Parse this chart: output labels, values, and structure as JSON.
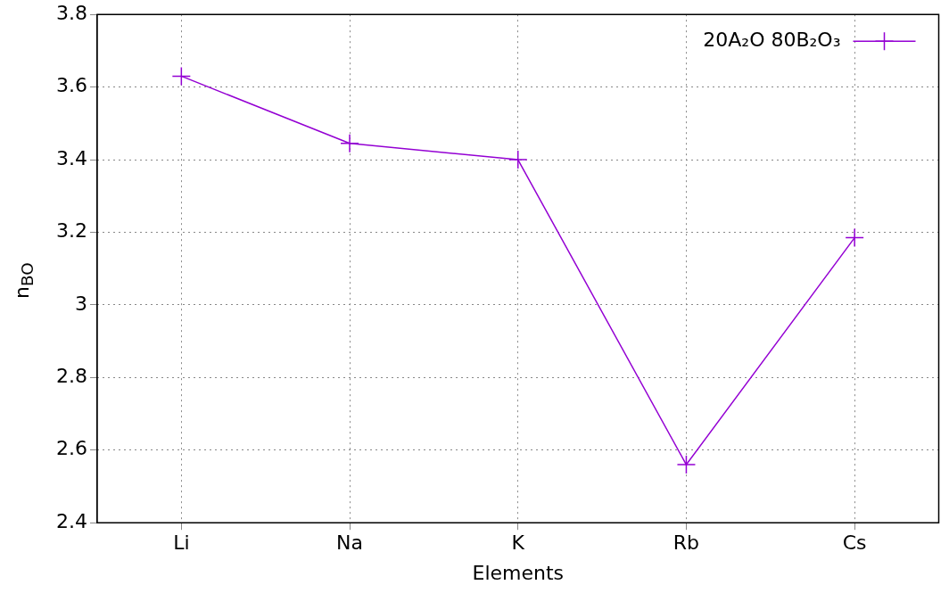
{
  "chart_data": {
    "type": "line",
    "xlabel": "Elements",
    "ylabel": "n$_{BO}$",
    "categories": [
      "Li",
      "Na",
      "K",
      "Rb",
      "Cs"
    ],
    "series": [
      {
        "name": "20A₂O 80B₂O₃",
        "color": "#9400d3",
        "values": [
          3.63,
          3.445,
          3.4,
          2.56,
          3.185
        ]
      }
    ],
    "ylim": [
      2.4,
      3.8
    ],
    "yticks": [
      2.4,
      2.6,
      2.8,
      3,
      3.2,
      3.4,
      3.6,
      3.8
    ],
    "grid": true,
    "legend": "top right",
    "marker": "cross",
    "line_style": "solid"
  }
}
